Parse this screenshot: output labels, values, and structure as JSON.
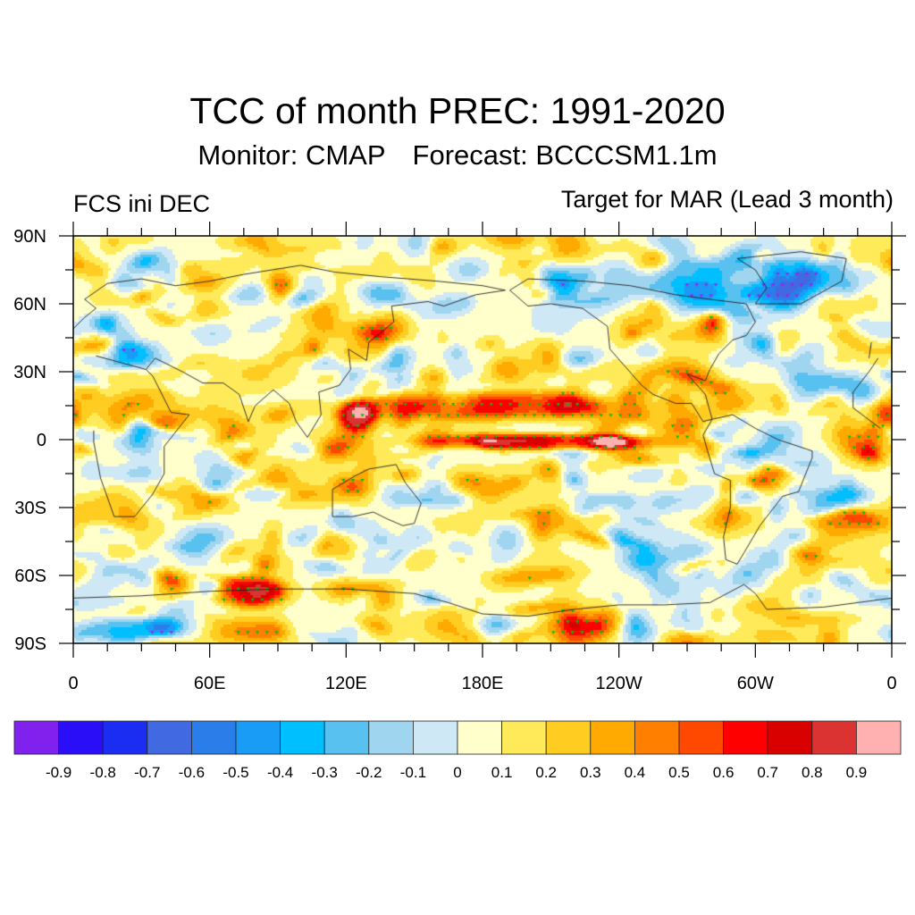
{
  "header": {
    "title": "TCC of month PREC: 1991-2020",
    "monitor": "Monitor: CMAP",
    "forecast": "Forecast: BCCCSM1.1m",
    "left_label": "FCS ini DEC",
    "right_label": "Target for MAR (Lead 3 month)"
  },
  "chart_data": {
    "type": "heatmap",
    "title": "TCC of month PREC: 1991-2020",
    "subtitle": "Monitor: CMAP   Forecast: BCCCSM1.1m",
    "left_string": "FCS ini DEC",
    "right_string": "Target for MAR (Lead 3 month)",
    "variable": "Temporal correlation coefficient (TCC) of monthly precipitation",
    "projection": "cylindrical equidistant, centered on 180",
    "x_axis": {
      "range": [
        0,
        360
      ],
      "ticks": [
        0,
        60,
        120,
        180,
        240,
        300,
        360
      ],
      "tick_labels": [
        "0",
        "60E",
        "120E",
        "180E",
        "120W",
        "60W",
        "0"
      ],
      "minor_tick_step_deg": 15
    },
    "y_axis": {
      "range": [
        -90,
        90
      ],
      "ticks": [
        90,
        60,
        30,
        0,
        -30,
        -60,
        -90
      ],
      "tick_labels": [
        "90N",
        "60N",
        "30N",
        "0",
        "30S",
        "60S",
        "90S"
      ],
      "minor_tick_step_deg": 15
    },
    "colorbar": {
      "levels": [
        -0.9,
        -0.8,
        -0.7,
        -0.6,
        -0.5,
        -0.4,
        -0.3,
        -0.2,
        -0.1,
        0,
        0.1,
        0.2,
        0.3,
        0.4,
        0.5,
        0.6,
        0.7,
        0.8,
        0.9
      ],
      "level_labels": [
        "-0.9",
        "-0.8",
        "-0.7",
        "-0.6",
        "-0.5",
        "-0.4",
        "-0.3",
        "-0.2",
        "-0.1",
        "0",
        "0.1",
        "0.2",
        "0.3",
        "0.4",
        "0.5",
        "0.6",
        "0.7",
        "0.8",
        "0.9"
      ],
      "colors": [
        "#8021ee",
        "#2a0ef8",
        "#1a2df0",
        "#4169e1",
        "#2b7de9",
        "#189cf5",
        "#00bfff",
        "#58c1f0",
        "#a0d5f0",
        "#cfe8f6",
        "#ffffcc",
        "#ffeb5a",
        "#ffcc22",
        "#ffaa00",
        "#ff7f00",
        "#ff4800",
        "#ff0000",
        "#d90000",
        "#db3232",
        "#ffb0b0"
      ],
      "orientation": "horizontal",
      "placement": "bottom"
    },
    "stippling": {
      "positive_significant_marker_color": "#00c000",
      "negative_significant_marker_color": "#a020f0"
    },
    "features": [
      {
        "name": "Equatorial central Pacific positive band",
        "lon_range": [
          150,
          265
        ],
        "lat_range": [
          -5,
          3
        ],
        "value_range": [
          0.6,
          0.8
        ]
      },
      {
        "name": "Western Pacific / Philippines maximum",
        "lon_range": [
          115,
          135
        ],
        "lat_range": [
          3,
          18
        ],
        "value_range": [
          0.6,
          0.8
        ]
      },
      {
        "name": "North Pacific subtropical positive band",
        "lon_range": [
          120,
          240
        ],
        "lat_range": [
          8,
          22
        ],
        "value_range": [
          0.4,
          0.7
        ]
      },
      {
        "name": "South Indian Ocean / Antarctic coast positive maximum",
        "lon_range": [
          60,
          95
        ],
        "lat_range": [
          -75,
          -60
        ],
        "value_range": [
          0.5,
          0.7
        ]
      },
      {
        "name": "Antarctic sea negative belts",
        "lon_range": [
          0,
          60
        ],
        "lat_range": [
          -90,
          -78
        ],
        "value_range": [
          -0.5,
          -0.3
        ]
      },
      {
        "name": "Arctic Canada / Greenland negative region",
        "lon_range": [
          240,
          350
        ],
        "lat_range": [
          55,
          85
        ],
        "value_range": [
          -0.6,
          -0.3
        ]
      },
      {
        "name": "Mediterranean negative region",
        "lon_range": [
          0,
          40
        ],
        "lat_range": [
          30,
          45
        ],
        "value_range": [
          -0.6,
          -0.3
        ]
      }
    ]
  },
  "colors": {
    "background": "#ffffff",
    "coastline": "#222222",
    "frame": "#000000"
  }
}
